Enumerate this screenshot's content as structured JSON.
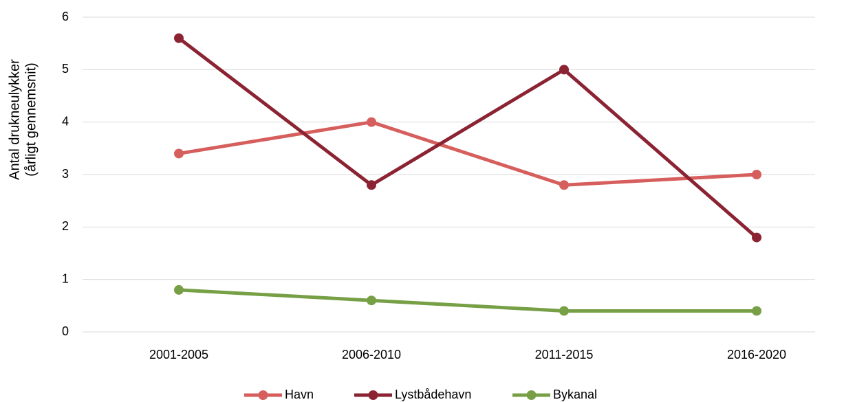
{
  "chart_data": {
    "type": "line",
    "y_label": [
      "Antal drukneulykker",
      "(årligt gennemsnit)"
    ],
    "categories": [
      "2001-2005",
      "2006-2010",
      "2011-2015",
      "2016-2020"
    ],
    "series": [
      {
        "name": "Havn",
        "color": "#d65f5d",
        "values": [
          3.4,
          4.0,
          2.8,
          3.0
        ]
      },
      {
        "name": "Lystbådehavn",
        "color": "#8b2332",
        "values": [
          5.6,
          2.8,
          5.0,
          1.8
        ]
      },
      {
        "name": "Bykanal",
        "color": "#77a046",
        "values": [
          0.8,
          0.6,
          0.4,
          0.4
        ]
      }
    ],
    "ylim": [
      0,
      6
    ],
    "yticks": [
      0,
      1,
      2,
      3,
      4,
      5,
      6
    ],
    "grid": true,
    "legend": "bottom"
  }
}
